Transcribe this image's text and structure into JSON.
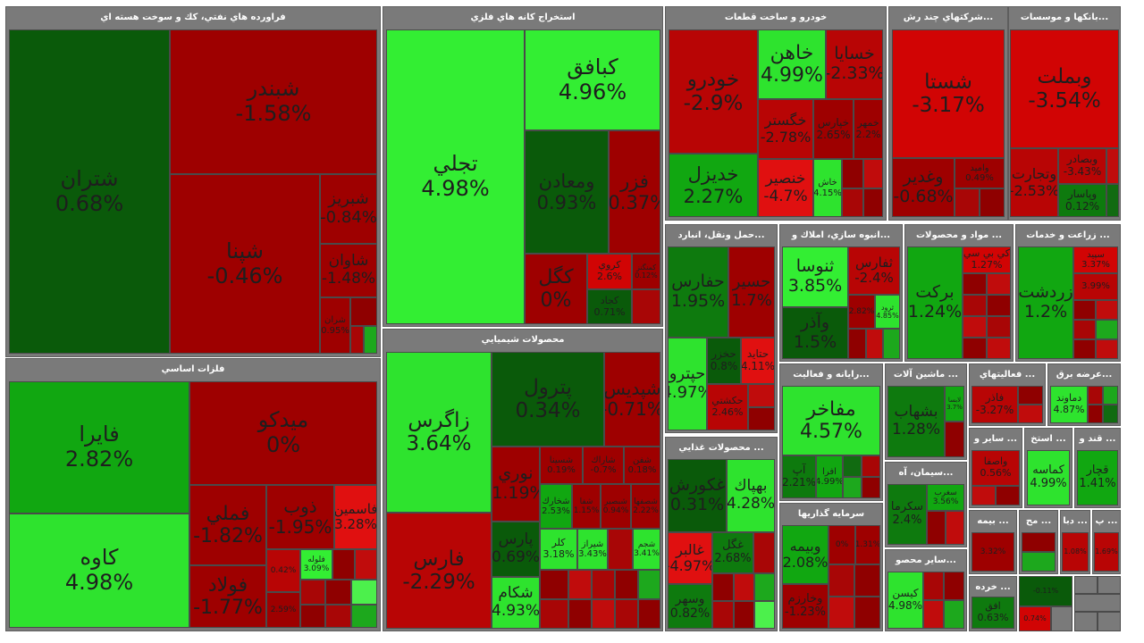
{
  "sectors": {
    "refinery": "فراورده هاي نفتي، كك و سوخت هسته اي",
    "mining": "استخراج كانه هاي فلزي",
    "auto": "خودرو و ساخت قطعات",
    "multi": "...شركتهاي چند رش",
    "banks": "...بانكها و موسسات",
    "metals": "فلزات اساسي",
    "chemicals": "محصولات شيميايي",
    "transport": "...حمل ونقل، انبارد",
    "construction": "...انبوه سازي، املاك و",
    "foodmat": "... مواد و محصولات",
    "agri": "... زراعت و خدمات",
    "utilities": "...رايانه و فعاليت",
    "machinery": "... ماشين آلات",
    "activities": "... فعاليتهاي",
    "electricity": "...عرضه برق",
    "food": "... محصولات غذايي",
    "other1": "... ساير و",
    "other2": "... استخ",
    "other3": "... قند و",
    "cement": "...سيمان، آه",
    "investment": "سرمايه گذاريها",
    "misc": "...ساير محصو",
    "insurance": "... بيمه",
    "small1": "... مح",
    "small2": "... دبا",
    "small3": "... پ",
    "retail": "... خرده"
  },
  "tiles": [
    {
      "s": "شتران",
      "p": "0.68%"
    },
    {
      "s": "شبندر",
      "p": "-1.58%"
    },
    {
      "s": "شپنا",
      "p": "-0.46%"
    },
    {
      "s": "شبريز",
      "p": "-0.84%"
    },
    {
      "s": "شاوان",
      "p": "-1.48%"
    },
    {
      "s": "شران",
      "p": "0.95%"
    },
    {
      "s": "تجلي",
      "p": "4.98%"
    },
    {
      "s": "كبافق",
      "p": "4.96%"
    },
    {
      "s": "ومعادن",
      "p": "0.93%"
    },
    {
      "s": "فزر",
      "p": "-0.37%"
    },
    {
      "s": "كگل",
      "p": "0%"
    },
    {
      "s": "كروي",
      "p": "2.6%"
    },
    {
      "s": "كمنگنز",
      "p": "0.12%"
    },
    {
      "s": "كجاد",
      "p": "0.71%"
    },
    {
      "s": "خودرو",
      "p": "-2.9%"
    },
    {
      "s": "خاهن",
      "p": "4.99%"
    },
    {
      "s": "خسايا",
      "p": "-2.33%"
    },
    {
      "s": "خگستر",
      "p": "-2.78%"
    },
    {
      "s": "خپارس",
      "p": "2.65%"
    },
    {
      "s": "خمهر",
      "p": "2.2%"
    },
    {
      "s": "خديزل",
      "p": "2.27%"
    },
    {
      "s": "خنصير",
      "p": "-4.7%"
    },
    {
      "s": "خاش",
      "p": "4.15%"
    },
    {
      "s": "شستا",
      "p": "-3.17%"
    },
    {
      "s": "وغدير",
      "p": "-0.68%"
    },
    {
      "s": "واميد",
      "p": "0.49%"
    },
    {
      "s": "وبملت",
      "p": "-3.54%"
    },
    {
      "s": "وتجارت",
      "p": "-2.53%"
    },
    {
      "s": "وبصادر",
      "p": "-3.43%"
    },
    {
      "s": "وپاسار",
      "p": "0.12%"
    },
    {
      "s": "فايرا",
      "p": "2.82%"
    },
    {
      "s": "ميدكو",
      "p": "0%"
    },
    {
      "s": "كاوه",
      "p": "4.98%"
    },
    {
      "s": "فملي",
      "p": "-1.82%"
    },
    {
      "s": "فولاد",
      "p": "-1.77%"
    },
    {
      "s": "ذوب",
      "p": "-1.95%"
    },
    {
      "s": "فاسمين",
      "p": "3.28%"
    },
    {
      "s": "فلوله",
      "p": "3.09%"
    },
    {
      "s": "",
      "p": "0.42%"
    },
    {
      "s": "",
      "p": "2.59%"
    },
    {
      "s": "زاگرس",
      "p": "3.64%"
    },
    {
      "s": "پترول",
      "p": "0.34%"
    },
    {
      "s": "شپديس",
      "p": "-0.71%"
    },
    {
      "s": "نوري",
      "p": "-1.19%"
    },
    {
      "s": "فارس",
      "p": "-2.29%"
    },
    {
      "s": "پارس",
      "p": "0.69%"
    },
    {
      "s": "شكام",
      "p": "4.93%"
    },
    {
      "s": "كلر",
      "p": "3.18%"
    },
    {
      "s": "شيراز",
      "p": "3.43%"
    },
    {
      "s": "شجم",
      "p": "3.41%"
    },
    {
      "s": "شسينا",
      "p": "0.19%"
    },
    {
      "s": "شاراك",
      "p": "-0.7%"
    },
    {
      "s": "شفن",
      "p": "0.18%"
    },
    {
      "s": "شخارك",
      "p": "2.53%"
    },
    {
      "s": "شفا",
      "p": "1.15%"
    },
    {
      "s": "شبصير",
      "p": "0.94%"
    },
    {
      "s": "شصفها",
      "p": "2.22%"
    },
    {
      "s": "حفارس",
      "p": "1.95%"
    },
    {
      "s": "حسير",
      "p": "1.7%"
    },
    {
      "s": "حپترو",
      "p": "4.97%"
    },
    {
      "s": "حخزر",
      "p": "0.8%"
    },
    {
      "s": "حتايد",
      "p": "4.11%"
    },
    {
      "s": "حكشتي",
      "p": "2.46%"
    },
    {
      "s": "ثنوسا",
      "p": "3.85%"
    },
    {
      "s": "ثفارس",
      "p": "-2.4%"
    },
    {
      "s": "وآذر",
      "p": "1.5%"
    },
    {
      "s": "ثرود",
      "p": "4.85%"
    },
    {
      "s": "",
      "p": "2.82%"
    },
    {
      "s": "كي بي سي",
      "p": "1.27%"
    },
    {
      "s": "بركت",
      "p": "1.24%"
    },
    {
      "s": "زردشت",
      "p": "1.2%"
    },
    {
      "s": "سپيد",
      "p": "3.37%"
    },
    {
      "s": "",
      "p": "3.99%"
    },
    {
      "s": "مفاخر",
      "p": "4.57%"
    },
    {
      "s": "آپ",
      "p": "2.21%"
    },
    {
      "s": "افرا",
      "p": "4.99%"
    },
    {
      "s": "بشهاب",
      "p": "1.28%"
    },
    {
      "s": "لابسا",
      "p": "3.7%"
    },
    {
      "s": "فاذر",
      "p": "-3.27%"
    },
    {
      "s": "دماوند",
      "p": "4.87%"
    },
    {
      "s": "بهپاك",
      "p": "4.28%"
    },
    {
      "s": "غكورش",
      "p": "0.31%"
    },
    {
      "s": "غالبر",
      "p": "-4.97%"
    },
    {
      "s": "غگل",
      "p": "2.68%"
    },
    {
      "s": "وسهر",
      "p": "0.82%"
    },
    {
      "s": "واصفا",
      "p": "0.56%"
    },
    {
      "s": "كماسه",
      "p": "4.99%"
    },
    {
      "s": "قچار",
      "p": "1.41%"
    },
    {
      "s": "سكرما",
      "p": "2.4%"
    },
    {
      "s": "سغرب",
      "p": "3.56%"
    },
    {
      "s": "",
      "p": "4.98%"
    },
    {
      "s": "وبيمه",
      "p": "2.08%"
    },
    {
      "s": "وخارزم",
      "p": "-1.23%"
    },
    {
      "s": "",
      "p": "0%"
    },
    {
      "s": "",
      "p": "1.31%"
    },
    {
      "s": "كيسن",
      "p": "4.98%"
    },
    {
      "s": "",
      "p": "3.32%"
    },
    {
      "s": "",
      "p": "1.08%"
    },
    {
      "s": "",
      "p": "1.69%"
    },
    {
      "s": "",
      "p": "-0.11%"
    },
    {
      "s": "افق",
      "p": "0.63%"
    },
    {
      "s": "",
      "p": "0.74%"
    }
  ]
}
